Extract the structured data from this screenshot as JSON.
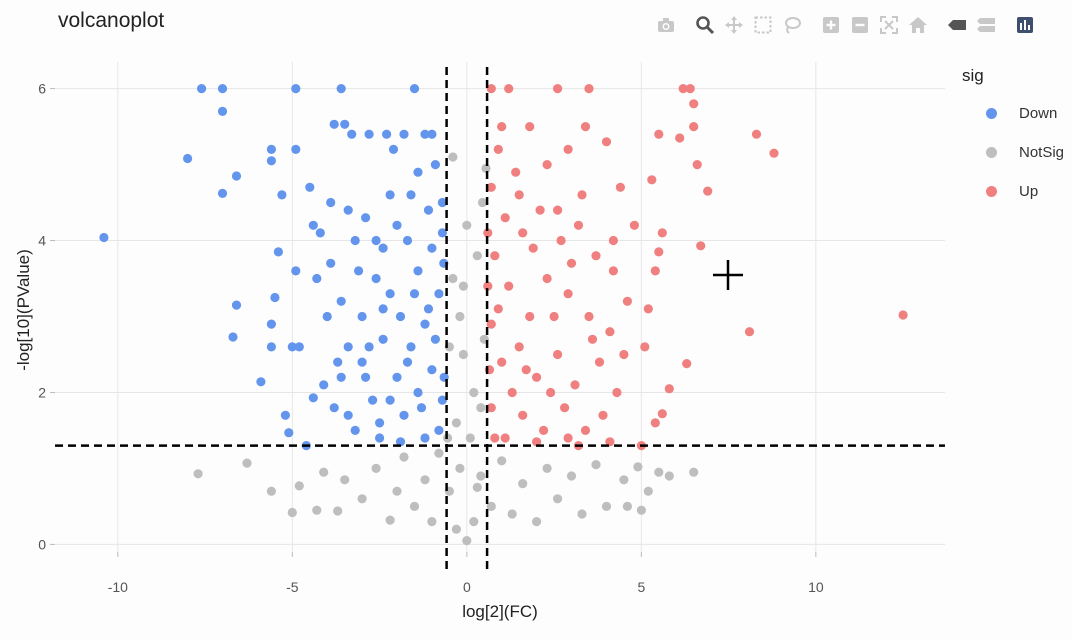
{
  "colors": {
    "down": "#6495ED",
    "notsig": "#BEBEBE",
    "up": "#F08080",
    "grid": "#e6e6e6",
    "threshold": "#000000",
    "modebar_icon": "#c8c8c8",
    "modebar_active": "#555555"
  },
  "modebar": [
    {
      "name": "camera-icon"
    },
    {
      "name": "zoom-icon"
    },
    {
      "name": "pan-icon"
    },
    {
      "name": "box-select-icon"
    },
    {
      "name": "lasso-select-icon"
    },
    {
      "name": "zoom-in-icon"
    },
    {
      "name": "zoom-out-icon"
    },
    {
      "name": "autoscale-icon"
    },
    {
      "name": "reset-axes-icon"
    },
    {
      "name": "hover-closest-icon"
    },
    {
      "name": "hover-compare-icon"
    },
    {
      "name": "plotly-logo-icon"
    }
  ],
  "chart_data": {
    "type": "scatter",
    "title": "volcanoplot",
    "xlabel": "log[2](FC)",
    "ylabel": "-log[10](PValue)",
    "xlim": [
      -11.8,
      13.7
    ],
    "ylim": [
      -0.1,
      6.35
    ],
    "xticks": [
      -10,
      -5,
      0,
      5,
      10
    ],
    "xtick_labels": [
      "-10",
      "-5",
      "0",
      "5",
      "10"
    ],
    "yticks": [
      0,
      2,
      4,
      6
    ],
    "ytick_labels": [
      "0",
      "2",
      "4",
      "6"
    ],
    "grid": true,
    "legend": {
      "title": "sig",
      "position": "top-right"
    },
    "thresholds": {
      "logfc": [
        -0.58,
        0.58
      ],
      "pvalue_line": 1.3
    },
    "series": [
      {
        "name": "Down",
        "color": "#6495ED",
        "points": [
          [
            -10.4,
            4.04
          ],
          [
            -7.6,
            6.0
          ],
          [
            -7.0,
            6.0
          ],
          [
            -8.0,
            5.08
          ],
          [
            -7.0,
            5.7
          ],
          [
            -6.6,
            4.85
          ],
          [
            -7.0,
            4.62
          ],
          [
            -6.6,
            3.15
          ],
          [
            -6.7,
            2.73
          ],
          [
            -5.9,
            2.14
          ],
          [
            -5.6,
            2.6
          ],
          [
            -5.6,
            2.9
          ],
          [
            -5.5,
            3.25
          ],
          [
            -5.4,
            3.85
          ],
          [
            -5.3,
            4.6
          ],
          [
            -5.6,
            5.2
          ],
          [
            -5.6,
            5.05
          ],
          [
            -4.9,
            6.0
          ],
          [
            -3.6,
            6.0
          ],
          [
            -1.5,
            6.0
          ],
          [
            -4.9,
            5.2
          ],
          [
            -4.5,
            4.7
          ],
          [
            -4.9,
            3.6
          ],
          [
            -5.0,
            2.6
          ],
          [
            -5.2,
            1.7
          ],
          [
            -5.1,
            1.47
          ],
          [
            -4.6,
            1.3
          ],
          [
            -4.4,
            1.93
          ],
          [
            -4.8,
            2.6
          ],
          [
            -4.1,
            2.1
          ],
          [
            -3.8,
            1.8
          ],
          [
            -3.6,
            2.2
          ],
          [
            -3.2,
            1.5
          ],
          [
            -3.0,
            2.4
          ],
          [
            -2.5,
            1.6
          ],
          [
            -2.8,
            5.4
          ],
          [
            -2.3,
            5.4
          ],
          [
            -2.1,
            5.2
          ],
          [
            -1.8,
            5.4
          ],
          [
            -1.2,
            5.4
          ],
          [
            -3.3,
            5.4
          ],
          [
            -3.8,
            5.53
          ],
          [
            -3.5,
            5.53
          ],
          [
            -1.0,
            5.4
          ],
          [
            -0.9,
            5.0
          ],
          [
            -1.4,
            4.9
          ],
          [
            -2.2,
            4.6
          ],
          [
            -3.4,
            4.4
          ],
          [
            -2.9,
            4.3
          ],
          [
            -4.2,
            4.1
          ],
          [
            -3.9,
            3.7
          ],
          [
            -3.6,
            3.2
          ],
          [
            -3.0,
            3.0
          ],
          [
            -2.6,
            3.5
          ],
          [
            -2.4,
            3.9
          ],
          [
            -2.0,
            4.2
          ],
          [
            -1.7,
            4.0
          ],
          [
            -1.4,
            3.6
          ],
          [
            -1.0,
            3.9
          ],
          [
            -0.8,
            3.3
          ],
          [
            -1.2,
            2.9
          ],
          [
            -1.6,
            2.6
          ],
          [
            -2.0,
            2.2
          ],
          [
            -2.4,
            2.7
          ],
          [
            -2.7,
            1.9
          ],
          [
            -1.8,
            1.7
          ],
          [
            -1.4,
            2.0
          ],
          [
            -1.0,
            2.3
          ],
          [
            -0.7,
            1.9
          ],
          [
            -0.8,
            1.5
          ],
          [
            -1.2,
            1.4
          ],
          [
            -1.9,
            1.35
          ],
          [
            -2.5,
            1.4
          ],
          [
            -3.4,
            2.6
          ],
          [
            -3.1,
            3.6
          ],
          [
            -2.2,
            3.3
          ],
          [
            -1.9,
            3.0
          ],
          [
            -1.5,
            3.3
          ],
          [
            -0.9,
            2.7
          ],
          [
            -0.7,
            4.5
          ],
          [
            -1.1,
            4.4
          ],
          [
            -1.6,
            4.6
          ],
          [
            -2.6,
            4.0
          ],
          [
            -3.2,
            4.0
          ],
          [
            -3.7,
            2.4
          ],
          [
            -4.0,
            3.0
          ],
          [
            -4.3,
            3.5
          ],
          [
            -3.9,
            4.5
          ],
          [
            -4.4,
            4.2
          ],
          [
            -1.3,
            1.8
          ],
          [
            -2.2,
            1.9
          ],
          [
            -2.9,
            2.2
          ],
          [
            -3.4,
            1.7
          ],
          [
            -1.7,
            2.4
          ],
          [
            -0.65,
            2.2
          ],
          [
            -0.66,
            3.7
          ],
          [
            -0.7,
            4.1
          ],
          [
            -1.1,
            3.1
          ],
          [
            -2.4,
            3.1
          ],
          [
            -2.8,
            2.6
          ]
        ]
      },
      {
        "name": "NotSig",
        "color": "#BEBEBE",
        "points": [
          [
            -7.7,
            0.93
          ],
          [
            -6.3,
            1.07
          ],
          [
            -5.6,
            0.7
          ],
          [
            -5.0,
            0.42
          ],
          [
            -4.8,
            0.77
          ],
          [
            -4.3,
            0.45
          ],
          [
            -4.1,
            0.95
          ],
          [
            -3.7,
            0.44
          ],
          [
            -3.5,
            0.85
          ],
          [
            -3.0,
            0.6
          ],
          [
            -2.6,
            1.0
          ],
          [
            -2.2,
            0.32
          ],
          [
            -2.0,
            0.7
          ],
          [
            -1.8,
            1.15
          ],
          [
            -1.5,
            0.5
          ],
          [
            -1.2,
            0.85
          ],
          [
            -1.0,
            0.3
          ],
          [
            -0.8,
            1.2
          ],
          [
            -0.5,
            0.7
          ],
          [
            -0.3,
            0.2
          ],
          [
            0.0,
            0.05
          ],
          [
            0.2,
            0.3
          ],
          [
            0.4,
            0.9
          ],
          [
            0.7,
            0.5
          ],
          [
            1.0,
            1.1
          ],
          [
            1.3,
            0.4
          ],
          [
            1.6,
            0.8
          ],
          [
            2.0,
            0.3
          ],
          [
            2.3,
            1.0
          ],
          [
            2.6,
            0.6
          ],
          [
            3.0,
            0.9
          ],
          [
            3.3,
            0.4
          ],
          [
            3.7,
            1.05
          ],
          [
            4.0,
            0.5
          ],
          [
            4.5,
            0.85
          ],
          [
            4.9,
            1.02
          ],
          [
            5.2,
            0.7
          ],
          [
            5.5,
            0.95
          ],
          [
            5.8,
            0.9
          ],
          [
            6.5,
            0.95
          ],
          [
            5.0,
            0.45
          ],
          [
            4.6,
            0.5
          ],
          [
            -0.4,
            5.1
          ],
          [
            0.55,
            4.95
          ],
          [
            -0.2,
            3.0
          ],
          [
            0.3,
            3.8
          ],
          [
            -0.1,
            2.5
          ],
          [
            0.2,
            2.0
          ],
          [
            -0.3,
            1.6
          ],
          [
            0.4,
            1.8
          ],
          [
            0.0,
            4.2
          ],
          [
            -0.5,
            2.6
          ],
          [
            0.5,
            2.7
          ],
          [
            -0.4,
            3.5
          ],
          [
            0.1,
            1.4
          ],
          [
            -0.2,
            1.0
          ],
          [
            0.3,
            0.75
          ],
          [
            -0.55,
            1.4
          ],
          [
            0.45,
            4.5
          ],
          [
            -0.1,
            3.4
          ]
        ]
      },
      {
        "name": "Up",
        "color": "#F08080",
        "points": [
          [
            0.7,
            6.0
          ],
          [
            1.2,
            6.0
          ],
          [
            2.6,
            6.0
          ],
          [
            3.5,
            6.0
          ],
          [
            6.2,
            6.0
          ],
          [
            6.4,
            6.0
          ],
          [
            8.3,
            5.4
          ],
          [
            8.8,
            5.15
          ],
          [
            12.5,
            3.02
          ],
          [
            8.1,
            2.8
          ],
          [
            6.7,
            3.93
          ],
          [
            6.9,
            4.65
          ],
          [
            6.6,
            5.0
          ],
          [
            6.5,
            5.5
          ],
          [
            6.5,
            5.8
          ],
          [
            6.1,
            5.35
          ],
          [
            5.5,
            5.4
          ],
          [
            5.3,
            4.8
          ],
          [
            5.6,
            4.1
          ],
          [
            5.4,
            3.6
          ],
          [
            5.2,
            3.1
          ],
          [
            5.1,
            2.6
          ],
          [
            6.3,
            2.38
          ],
          [
            5.8,
            2.05
          ],
          [
            5.6,
            1.72
          ],
          [
            5.4,
            1.6
          ],
          [
            5.0,
            1.3
          ],
          [
            5.5,
            3.85
          ],
          [
            4.4,
            4.7
          ],
          [
            4.0,
            5.3
          ],
          [
            3.4,
            5.5
          ],
          [
            2.9,
            5.2
          ],
          [
            2.3,
            5.0
          ],
          [
            1.8,
            5.5
          ],
          [
            1.4,
            4.9
          ],
          [
            0.9,
            5.2
          ],
          [
            0.7,
            4.7
          ],
          [
            1.1,
            4.3
          ],
          [
            1.6,
            4.1
          ],
          [
            2.1,
            4.4
          ],
          [
            2.7,
            4.0
          ],
          [
            3.2,
            4.2
          ],
          [
            3.7,
            3.8
          ],
          [
            4.2,
            3.6
          ],
          [
            4.6,
            3.2
          ],
          [
            4.1,
            2.8
          ],
          [
            3.5,
            3.0
          ],
          [
            2.9,
            3.3
          ],
          [
            2.3,
            3.5
          ],
          [
            1.8,
            3.0
          ],
          [
            1.2,
            3.4
          ],
          [
            0.8,
            3.8
          ],
          [
            0.7,
            2.9
          ],
          [
            1.0,
            2.4
          ],
          [
            1.5,
            2.6
          ],
          [
            2.0,
            2.2
          ],
          [
            2.6,
            2.5
          ],
          [
            3.1,
            2.1
          ],
          [
            3.8,
            2.4
          ],
          [
            4.3,
            2.0
          ],
          [
            3.9,
            1.7
          ],
          [
            3.4,
            1.5
          ],
          [
            2.8,
            1.8
          ],
          [
            2.2,
            1.5
          ],
          [
            1.6,
            1.7
          ],
          [
            1.1,
            1.4
          ],
          [
            0.7,
            1.8
          ],
          [
            0.65,
            2.3
          ],
          [
            1.3,
            2.0
          ],
          [
            0.9,
            3.1
          ],
          [
            1.9,
            3.9
          ],
          [
            2.5,
            3.0
          ],
          [
            3.0,
            3.7
          ],
          [
            3.6,
            2.7
          ],
          [
            4.5,
            2.5
          ],
          [
            4.8,
            4.2
          ],
          [
            4.2,
            4.0
          ],
          [
            3.3,
            4.6
          ],
          [
            2.6,
            4.4
          ],
          [
            1.5,
            4.6
          ],
          [
            1.0,
            5.5
          ],
          [
            0.6,
            4.1
          ],
          [
            0.6,
            3.4
          ],
          [
            0.8,
            1.4
          ],
          [
            2.0,
            1.35
          ],
          [
            2.9,
            1.4
          ],
          [
            3.2,
            1.3
          ],
          [
            4.1,
            1.35
          ],
          [
            1.7,
            2.3
          ],
          [
            2.4,
            2.0
          ]
        ]
      }
    ]
  }
}
